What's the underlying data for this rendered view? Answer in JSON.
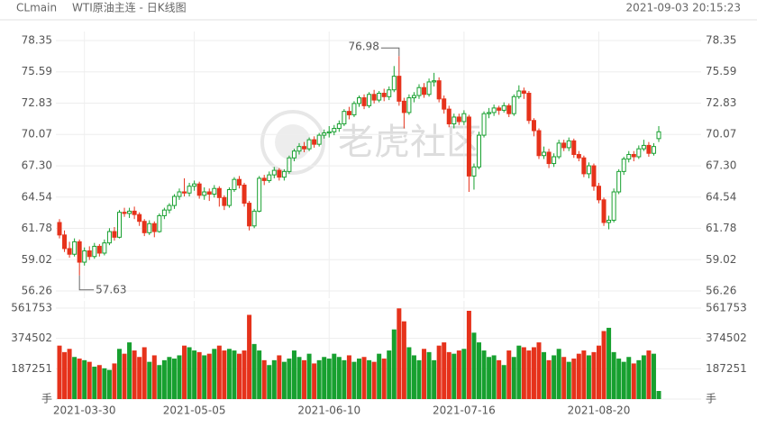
{
  "header": {
    "symbol": "CLmain",
    "name": "WTI原油主连 - 日K线图",
    "time": "2021-09-03 20:15:23"
  },
  "watermark": "老虎社区",
  "chart_data": {
    "type": "candlestick",
    "up_color": "#17a02f",
    "down_color": "#e6321b",
    "grid": true,
    "ylim": [
      56.26,
      78.35
    ],
    "yticks": [
      78.35,
      75.59,
      72.83,
      70.07,
      {
        "value": 67.3,
        "label": "67.30"
      },
      64.54,
      61.78,
      59.02,
      56.26
    ],
    "volume_ylim": [
      0,
      561753
    ],
    "volume_yticks": [
      561753,
      374502,
      187251,
      {
        "value": 0,
        "label": "手"
      }
    ],
    "categories": [
      null,
      null,
      null,
      null,
      null,
      "2021-03-30",
      null,
      null,
      null,
      null,
      null,
      null,
      null,
      null,
      null,
      null,
      null,
      null,
      null,
      null,
      null,
      null,
      null,
      null,
      null,
      null,
      null,
      "2021-05-05",
      null,
      null,
      null,
      null,
      null,
      null,
      null,
      null,
      null,
      null,
      null,
      null,
      null,
      null,
      null,
      null,
      null,
      null,
      null,
      null,
      null,
      null,
      null,
      null,
      null,
      null,
      "2021-06-10",
      null,
      null,
      null,
      null,
      null,
      null,
      null,
      null,
      null,
      null,
      null,
      null,
      null,
      null,
      null,
      null,
      null,
      null,
      null,
      null,
      null,
      null,
      null,
      null,
      null,
      null,
      "2021-07-16",
      null,
      null,
      null,
      null,
      null,
      null,
      null,
      null,
      null,
      null,
      null,
      null,
      null,
      null,
      null,
      null,
      null,
      null,
      null,
      null,
      null,
      null,
      null,
      null,
      null,
      null,
      "2021-08-20",
      null,
      null,
      null,
      null,
      null,
      null,
      null,
      null,
      null,
      null,
      null,
      null
    ],
    "candles": [
      [
        62.3,
        62.6,
        60.9,
        61.2
      ],
      [
        61.2,
        61.6,
        59.7,
        60.0
      ],
      [
        60.0,
        60.6,
        59.2,
        59.5
      ],
      [
        59.5,
        60.9,
        59.3,
        60.6
      ],
      [
        60.6,
        60.8,
        57.63,
        58.8
      ],
      [
        58.8,
        60.1,
        58.5,
        59.8
      ],
      [
        59.8,
        60.2,
        59.0,
        59.3
      ],
      [
        59.3,
        60.5,
        59.1,
        60.2
      ],
      [
        60.2,
        60.4,
        59.3,
        59.6
      ],
      [
        59.6,
        60.8,
        59.4,
        60.5
      ],
      [
        60.5,
        61.8,
        60.3,
        61.5
      ],
      [
        61.5,
        61.9,
        60.7,
        61.0
      ],
      [
        61.0,
        63.4,
        60.9,
        63.2
      ],
      [
        63.2,
        63.6,
        62.8,
        63.1
      ],
      [
        63.1,
        63.6,
        62.7,
        63.3
      ],
      [
        63.3,
        63.7,
        62.6,
        63.0
      ],
      [
        63.0,
        63.2,
        62.0,
        62.4
      ],
      [
        62.4,
        62.6,
        61.1,
        61.4
      ],
      [
        61.4,
        62.5,
        61.2,
        62.2
      ],
      [
        62.2,
        62.4,
        61.0,
        61.5
      ],
      [
        61.5,
        63.1,
        61.4,
        62.9
      ],
      [
        62.9,
        63.6,
        62.6,
        63.4
      ],
      [
        63.4,
        64.0,
        63.1,
        63.8
      ],
      [
        63.8,
        64.8,
        63.5,
        64.6
      ],
      [
        64.6,
        65.3,
        64.3,
        65.0
      ],
      [
        65.0,
        66.2,
        64.6,
        64.9
      ],
      [
        64.9,
        65.8,
        64.6,
        65.5
      ],
      [
        65.5,
        66.0,
        65.1,
        65.7
      ],
      [
        65.7,
        65.9,
        64.4,
        64.7
      ],
      [
        64.7,
        65.4,
        64.3,
        65.0
      ],
      [
        65.0,
        65.3,
        64.2,
        64.8
      ],
      [
        64.8,
        65.6,
        64.5,
        65.3
      ],
      [
        65.3,
        65.5,
        63.7,
        64.5
      ],
      [
        64.5,
        64.7,
        63.4,
        63.8
      ],
      [
        63.8,
        65.4,
        63.6,
        65.2
      ],
      [
        65.2,
        66.3,
        65.0,
        66.1
      ],
      [
        66.1,
        66.4,
        65.3,
        65.6
      ],
      [
        65.6,
        65.8,
        63.7,
        64.0
      ],
      [
        64.0,
        64.2,
        61.6,
        62.0
      ],
      [
        62.0,
        63.5,
        61.8,
        63.3
      ],
      [
        63.3,
        66.4,
        63.2,
        66.2
      ],
      [
        66.2,
        66.5,
        65.6,
        66.0
      ],
      [
        66.0,
        66.8,
        65.8,
        66.5
      ],
      [
        66.5,
        67.2,
        66.2,
        66.9
      ],
      [
        66.9,
        67.1,
        66.0,
        66.3
      ],
      [
        66.3,
        67.0,
        66.0,
        66.8
      ],
      [
        66.8,
        68.2,
        66.6,
        68.0
      ],
      [
        68.0,
        68.8,
        67.7,
        68.6
      ],
      [
        68.6,
        69.3,
        68.3,
        69.0
      ],
      [
        69.0,
        69.4,
        68.5,
        68.8
      ],
      [
        68.8,
        69.8,
        68.6,
        69.6
      ],
      [
        69.6,
        69.9,
        68.9,
        69.2
      ],
      [
        69.2,
        70.2,
        69.0,
        70.0
      ],
      [
        70.0,
        70.5,
        69.7,
        70.2
      ],
      [
        70.2,
        70.8,
        69.8,
        70.3
      ],
      [
        70.3,
        70.9,
        70.0,
        70.6
      ],
      [
        70.6,
        71.3,
        70.3,
        71.0
      ],
      [
        71.0,
        72.3,
        70.8,
        72.1
      ],
      [
        72.1,
        72.5,
        71.4,
        71.8
      ],
      [
        71.8,
        73.0,
        71.6,
        72.8
      ],
      [
        72.8,
        73.5,
        72.5,
        73.3
      ],
      [
        73.3,
        73.6,
        72.3,
        72.6
      ],
      [
        72.6,
        73.8,
        72.4,
        73.6
      ],
      [
        73.6,
        74.0,
        72.8,
        73.1
      ],
      [
        73.1,
        73.9,
        72.9,
        73.7
      ],
      [
        73.7,
        74.1,
        73.0,
        73.4
      ],
      [
        73.4,
        74.3,
        73.1,
        74.0
      ],
      [
        74.0,
        76.1,
        73.8,
        75.2
      ],
      [
        75.2,
        76.98,
        72.6,
        73.0
      ],
      [
        73.0,
        73.3,
        70.6,
        72.0
      ],
      [
        72.0,
        73.6,
        71.8,
        73.3
      ],
      [
        73.3,
        73.8,
        72.9,
        73.5
      ],
      [
        73.5,
        74.5,
        73.2,
        74.2
      ],
      [
        74.2,
        74.6,
        73.3,
        73.6
      ],
      [
        73.6,
        75.0,
        73.4,
        74.7
      ],
      [
        74.7,
        75.5,
        74.3,
        74.8
      ],
      [
        74.8,
        75.1,
        72.9,
        73.2
      ],
      [
        73.2,
        73.5,
        71.9,
        72.3
      ],
      [
        72.3,
        72.6,
        70.7,
        71.0
      ],
      [
        71.0,
        71.9,
        70.6,
        71.6
      ],
      [
        71.6,
        71.9,
        70.9,
        71.2
      ],
      [
        71.2,
        72.2,
        70.9,
        71.9
      ],
      [
        71.6,
        71.8,
        65.0,
        66.4
      ],
      [
        66.4,
        67.5,
        65.2,
        67.2
      ],
      [
        67.2,
        70.3,
        67.0,
        70.0
      ],
      [
        70.0,
        72.1,
        69.8,
        71.9
      ],
      [
        71.9,
        72.4,
        71.5,
        72.0
      ],
      [
        72.0,
        72.7,
        71.7,
        72.4
      ],
      [
        72.4,
        72.6,
        71.8,
        72.2
      ],
      [
        72.2,
        72.9,
        72.0,
        72.6
      ],
      [
        72.6,
        72.8,
        71.6,
        71.9
      ],
      [
        71.9,
        73.6,
        71.7,
        73.4
      ],
      [
        73.4,
        74.4,
        73.2,
        73.9
      ],
      [
        73.9,
        74.2,
        73.2,
        73.7
      ],
      [
        73.7,
        73.9,
        71.0,
        71.3
      ],
      [
        71.3,
        71.5,
        69.9,
        70.4
      ],
      [
        70.4,
        70.6,
        67.9,
        68.2
      ],
      [
        68.2,
        69.0,
        67.9,
        68.5
      ],
      [
        68.5,
        68.8,
        67.1,
        67.5
      ],
      [
        67.5,
        68.4,
        67.2,
        68.1
      ],
      [
        68.1,
        69.6,
        67.9,
        69.3
      ],
      [
        69.3,
        69.6,
        68.6,
        68.9
      ],
      [
        68.9,
        69.8,
        68.6,
        69.5
      ],
      [
        69.5,
        69.7,
        68.0,
        68.3
      ],
      [
        68.3,
        68.6,
        67.7,
        68.0
      ],
      [
        68.0,
        68.2,
        66.3,
        66.6
      ],
      [
        66.6,
        67.6,
        66.2,
        67.3
      ],
      [
        67.3,
        67.5,
        65.1,
        65.5
      ],
      [
        65.5,
        65.8,
        64.0,
        64.3
      ],
      [
        64.3,
        64.5,
        62.0,
        62.3
      ],
      [
        62.3,
        62.9,
        61.7,
        62.5
      ],
      [
        62.5,
        65.3,
        62.3,
        65.0
      ],
      [
        65.0,
        67.0,
        64.8,
        66.8
      ],
      [
        66.8,
        68.1,
        66.5,
        67.9
      ],
      [
        67.9,
        68.6,
        67.6,
        68.3
      ],
      [
        68.3,
        68.6,
        67.7,
        68.1
      ],
      [
        68.1,
        69.1,
        67.9,
        68.8
      ],
      [
        68.8,
        69.6,
        68.6,
        69.1
      ],
      [
        69.1,
        69.4,
        68.1,
        68.4
      ],
      [
        68.4,
        69.3,
        68.2,
        69.0
      ],
      [
        69.7,
        70.8,
        69.4,
        70.3
      ]
    ],
    "volume": [
      330000,
      290000,
      310000,
      260000,
      250000,
      240000,
      230000,
      200000,
      210000,
      190000,
      180000,
      220000,
      310000,
      280000,
      350000,
      300000,
      260000,
      320000,
      230000,
      270000,
      210000,
      240000,
      260000,
      250000,
      270000,
      330000,
      320000,
      300000,
      290000,
      270000,
      280000,
      310000,
      330000,
      300000,
      310000,
      300000,
      280000,
      300000,
      520000,
      340000,
      300000,
      240000,
      210000,
      240000,
      270000,
      230000,
      250000,
      300000,
      260000,
      240000,
      280000,
      220000,
      240000,
      260000,
      250000,
      280000,
      260000,
      240000,
      270000,
      230000,
      250000,
      260000,
      240000,
      230000,
      280000,
      250000,
      300000,
      430000,
      560000,
      480000,
      320000,
      270000,
      240000,
      310000,
      290000,
      240000,
      330000,
      350000,
      290000,
      280000,
      300000,
      310000,
      545000,
      410000,
      350000,
      300000,
      260000,
      270000,
      240000,
      210000,
      300000,
      260000,
      330000,
      320000,
      300000,
      320000,
      350000,
      290000,
      240000,
      270000,
      310000,
      260000,
      230000,
      250000,
      280000,
      300000,
      270000,
      290000,
      330000,
      420000,
      440000,
      290000,
      250000,
      230000,
      260000,
      220000,
      240000,
      270000,
      300000,
      280000,
      50000
    ],
    "max_index": 68,
    "min_index": 4
  }
}
